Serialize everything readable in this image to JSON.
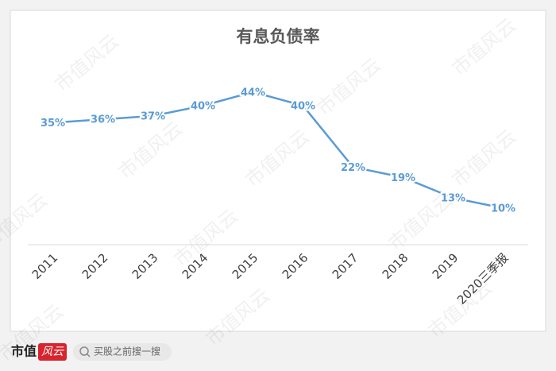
{
  "chart_data": {
    "type": "line",
    "title": "有息负债率",
    "categories": [
      "2011",
      "2012",
      "2013",
      "2014",
      "2015",
      "2016",
      "2017",
      "2018",
      "2019",
      "2020三季报"
    ],
    "values": [
      35,
      36,
      37,
      40,
      44,
      40,
      22,
      19,
      13,
      10
    ],
    "value_labels": [
      "35%",
      "36%",
      "37%",
      "40%",
      "44%",
      "40%",
      "22%",
      "19%",
      "13%",
      "10%"
    ],
    "color": "#5b9bd5",
    "ylim": [
      0,
      50
    ]
  },
  "watermark": "市值风云",
  "footer": {
    "brand": "市值",
    "logo": "风云",
    "search": "买股之前搜一搜"
  }
}
